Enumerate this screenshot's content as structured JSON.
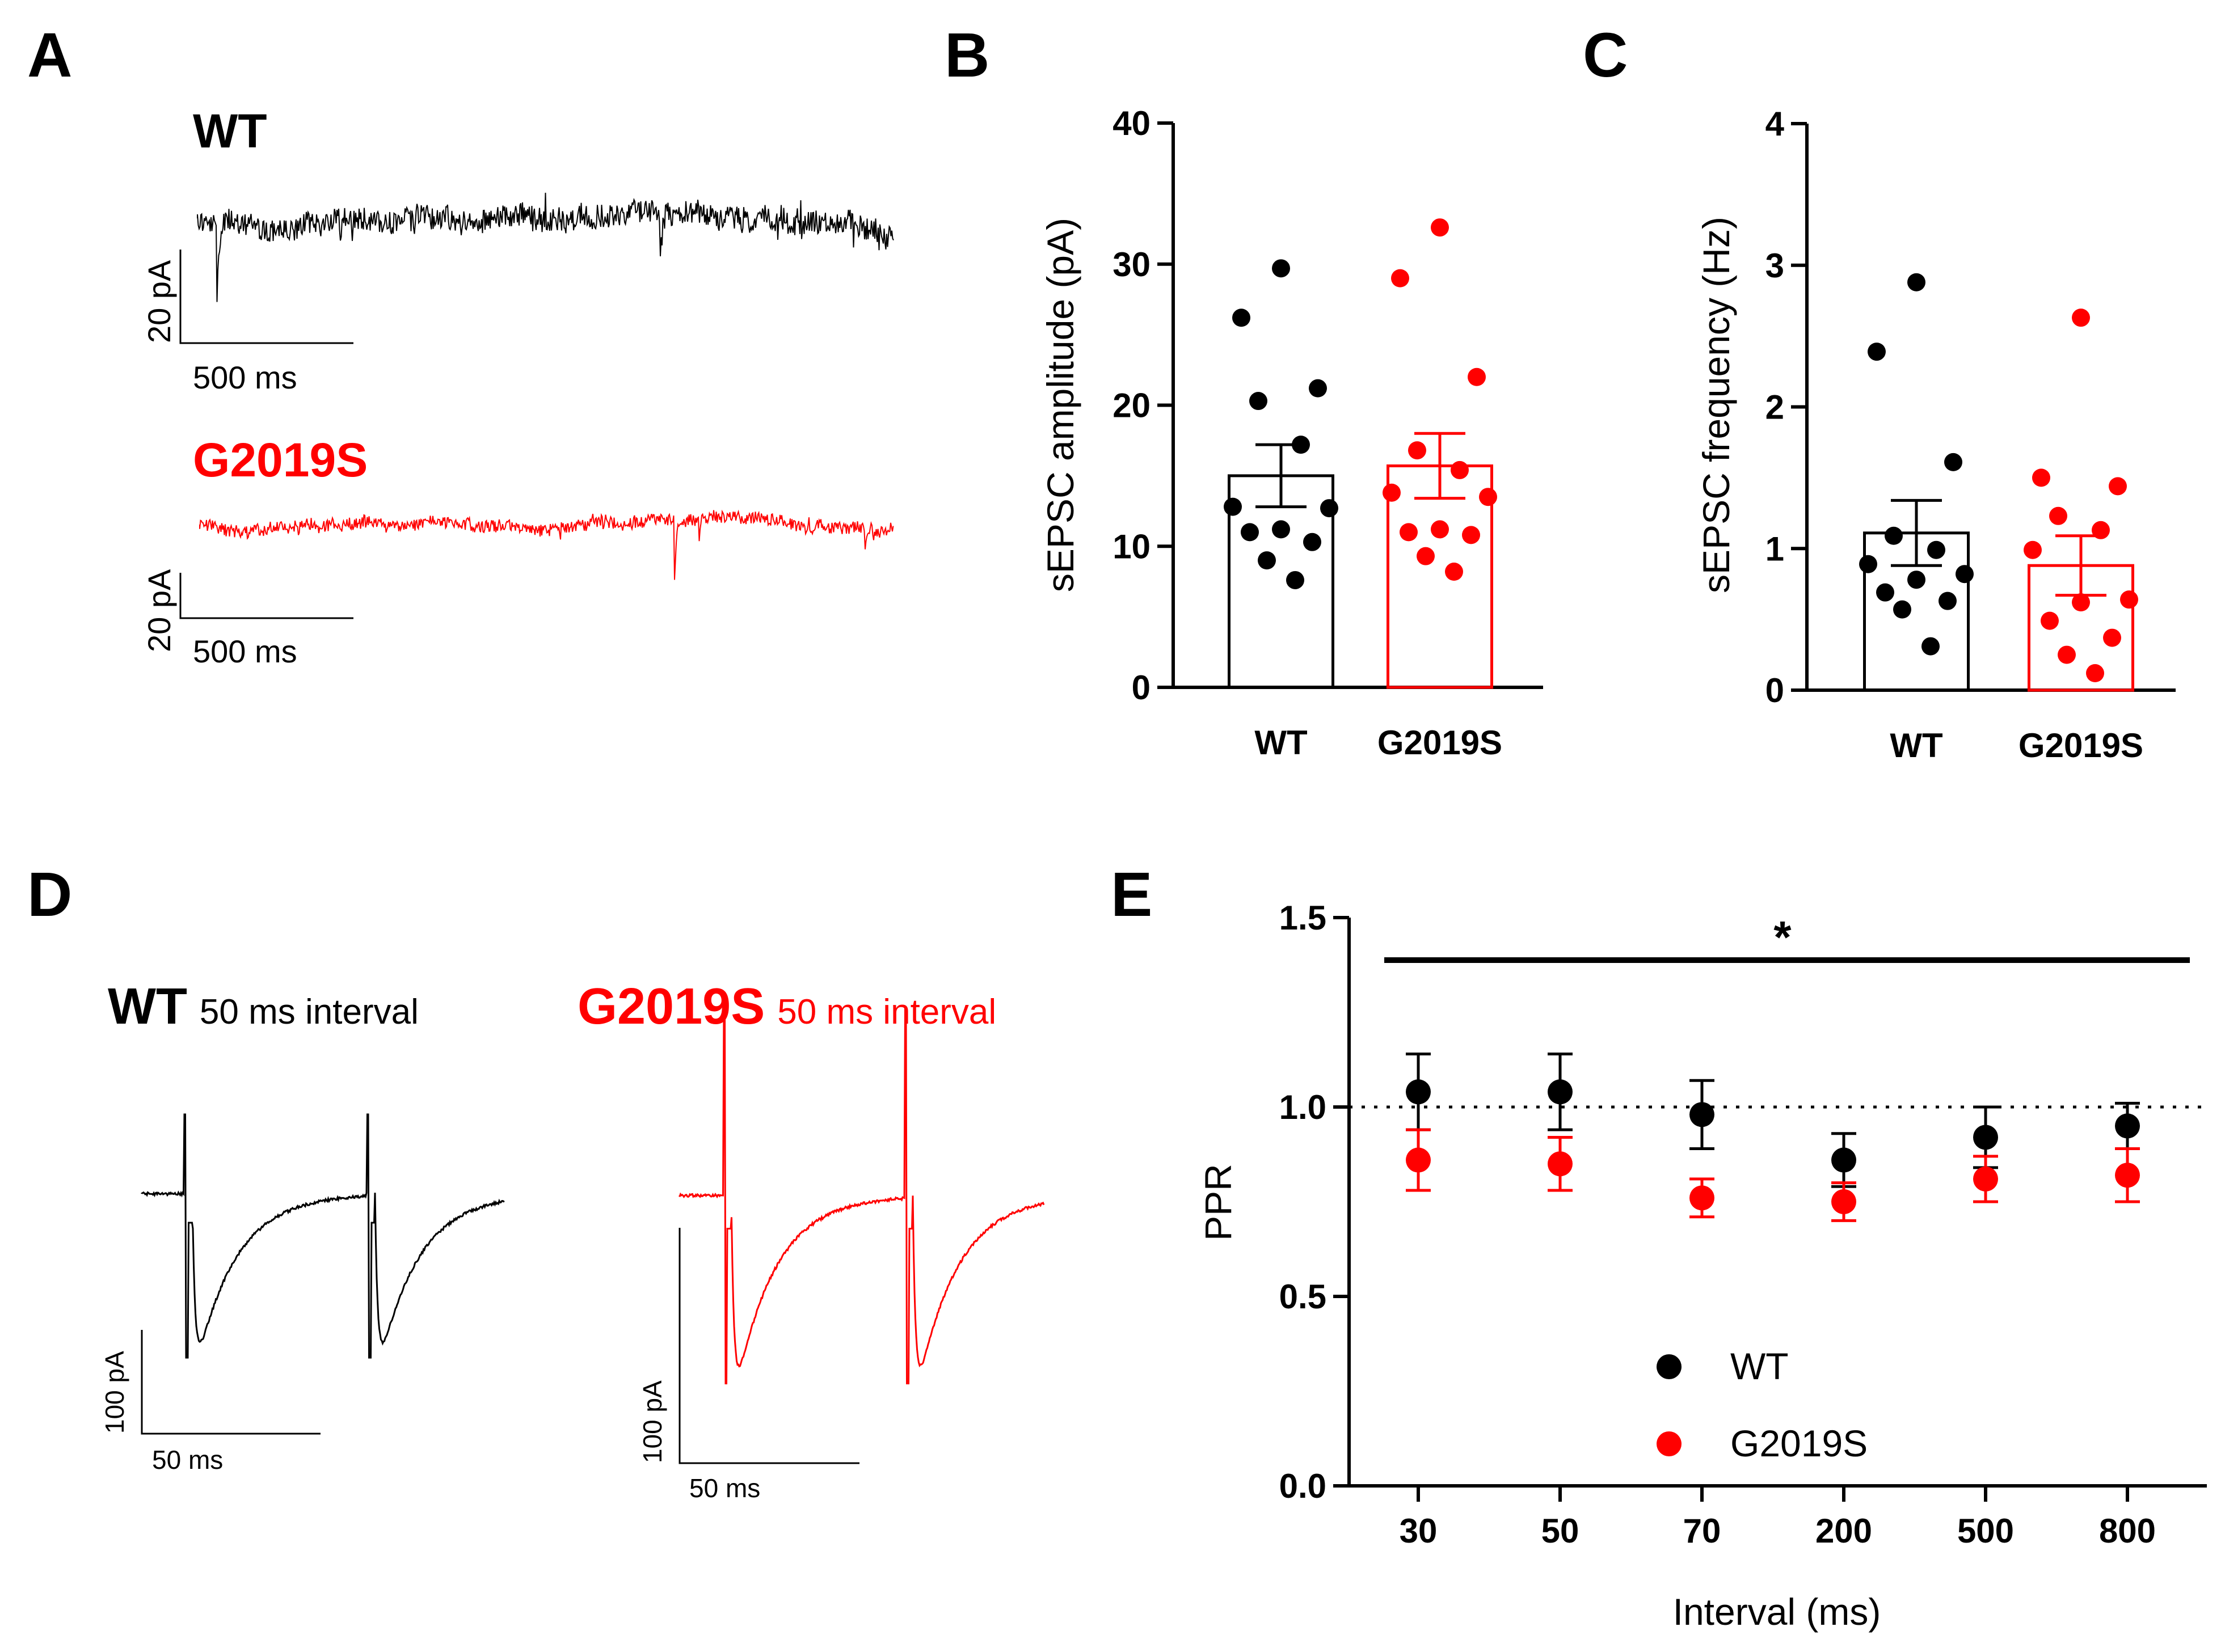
{
  "colors": {
    "wt": "#000000",
    "g2019s": "#ff0000"
  },
  "panel_labels": [
    "A",
    "B",
    "C",
    "D",
    "E"
  ],
  "panel_a": {
    "wt_label": "WT",
    "g_label": "G2019S",
    "wt_scale_y": "20 pA",
    "wt_scale_x": "500 ms",
    "g_scale_y": "20 pA",
    "g_scale_x": "500 ms"
  },
  "panel_d": {
    "wt_label": "WT",
    "wt_interval": "50 ms interval",
    "g_label": "G2019S",
    "g_interval": "50 ms interval",
    "wt_scale_y": "100 pA",
    "wt_scale_x": "50 ms",
    "g_scale_y": "100 pA",
    "g_scale_x": "50 ms"
  },
  "chart_data": [
    {
      "id": "B",
      "type": "bar",
      "categories": [
        "WT",
        "G2019S"
      ],
      "means": [
        15.0,
        15.7
      ],
      "sem": [
        2.2,
        2.3
      ],
      "points": [
        [
          29.7,
          26.2,
          21.2,
          20.3,
          17.2,
          12.8,
          12.7,
          11.2,
          11.0,
          10.3,
          9.0,
          7.6
        ],
        [
          32.6,
          29.0,
          22.0,
          16.8,
          15.4,
          13.8,
          13.5,
          11.2,
          11.0,
          10.8,
          9.3,
          8.2
        ]
      ],
      "xlabel": "",
      "ylabel": "sEPSC amplitude (pA)",
      "ylim": [
        0,
        40
      ],
      "yticks": [
        "0",
        "10",
        "20",
        "30",
        "40"
      ]
    },
    {
      "id": "C",
      "type": "bar",
      "categories": [
        "WT",
        "G2019S"
      ],
      "means": [
        1.11,
        0.88
      ],
      "sem": [
        0.23,
        0.21
      ],
      "points": [
        [
          2.88,
          2.39,
          1.61,
          1.09,
          0.99,
          0.89,
          0.82,
          0.78,
          0.69,
          0.63,
          0.57,
          0.31
        ],
        [
          2.63,
          1.5,
          1.44,
          1.23,
          1.13,
          0.99,
          0.64,
          0.62,
          0.49,
          0.37,
          0.25,
          0.12
        ]
      ],
      "xlabel": "",
      "ylabel": "sEPSC frequency (Hz)",
      "ylim": [
        0,
        4
      ],
      "yticks": [
        "0",
        "1",
        "2",
        "3",
        "4"
      ]
    },
    {
      "id": "E",
      "type": "scatter",
      "categories": [
        "30",
        "50",
        "70",
        "200",
        "500",
        "800"
      ],
      "series": [
        {
          "name": "WT",
          "values": [
            1.04,
            1.04,
            0.98,
            0.86,
            0.92,
            0.95
          ],
          "err": [
            0.1,
            0.1,
            0.09,
            0.07,
            0.08,
            0.06
          ]
        },
        {
          "name": "G2019S",
          "values": [
            0.86,
            0.85,
            0.76,
            0.75,
            0.81,
            0.82
          ],
          "err": [
            0.08,
            0.07,
            0.05,
            0.05,
            0.06,
            0.07
          ]
        }
      ],
      "xlabel": "Interval (ms)",
      "ylabel": "PPR",
      "ylim": [
        0,
        1.5
      ],
      "yticks": [
        "0.0",
        "0.5",
        "1.0",
        "1.5"
      ],
      "reference_line": 1.0,
      "significance": "*",
      "legend_position": "bottom-center"
    }
  ]
}
